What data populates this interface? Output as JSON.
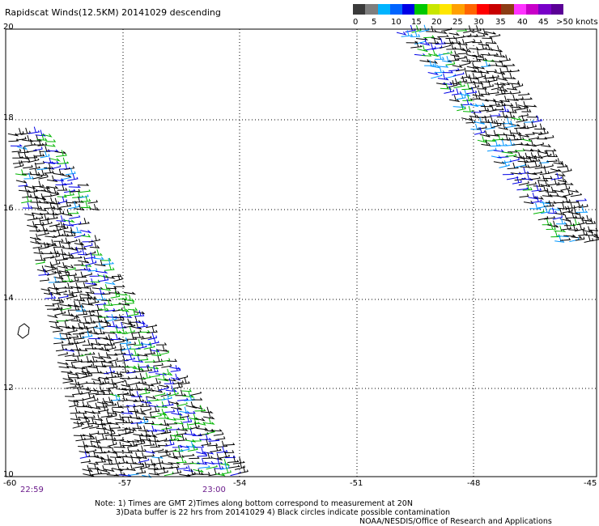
{
  "title": "Rapidscat Winds(12.5KM) 20141029 descending",
  "legend": {
    "colors": [
      "#3a3a3a",
      "#7e7e7e",
      "#00b4ff",
      "#0064ff",
      "#0000e6",
      "#00c800",
      "#c8e600",
      "#ffe600",
      "#ffa000",
      "#ff6400",
      "#ff0000",
      "#c80000",
      "#8c3c14",
      "#ff32ff",
      "#c800c8",
      "#7800c8",
      "#5a0096"
    ],
    "labels": [
      "0",
      "5",
      "10",
      "15",
      "20",
      "25",
      "30",
      "35",
      "40",
      "45",
      ">50 knots"
    ]
  },
  "axes": {
    "x_ticks": [
      "-60",
      "-57",
      "-54",
      "-51",
      "-48",
      "-45"
    ],
    "y_ticks": [
      "20",
      "18",
      "16",
      "14",
      "12",
      "10"
    ]
  },
  "times": [
    "22:59",
    "23:00"
  ],
  "notes": [
    "Note: 1) Times are GMT 2)Times along bottom correspond to measurement at 20N",
    "3)Data buffer is 22 hrs from 20141029 4) Black circles indicate possible contamination",
    "NOAA/NESDIS/Office of Research and Applications"
  ]
}
